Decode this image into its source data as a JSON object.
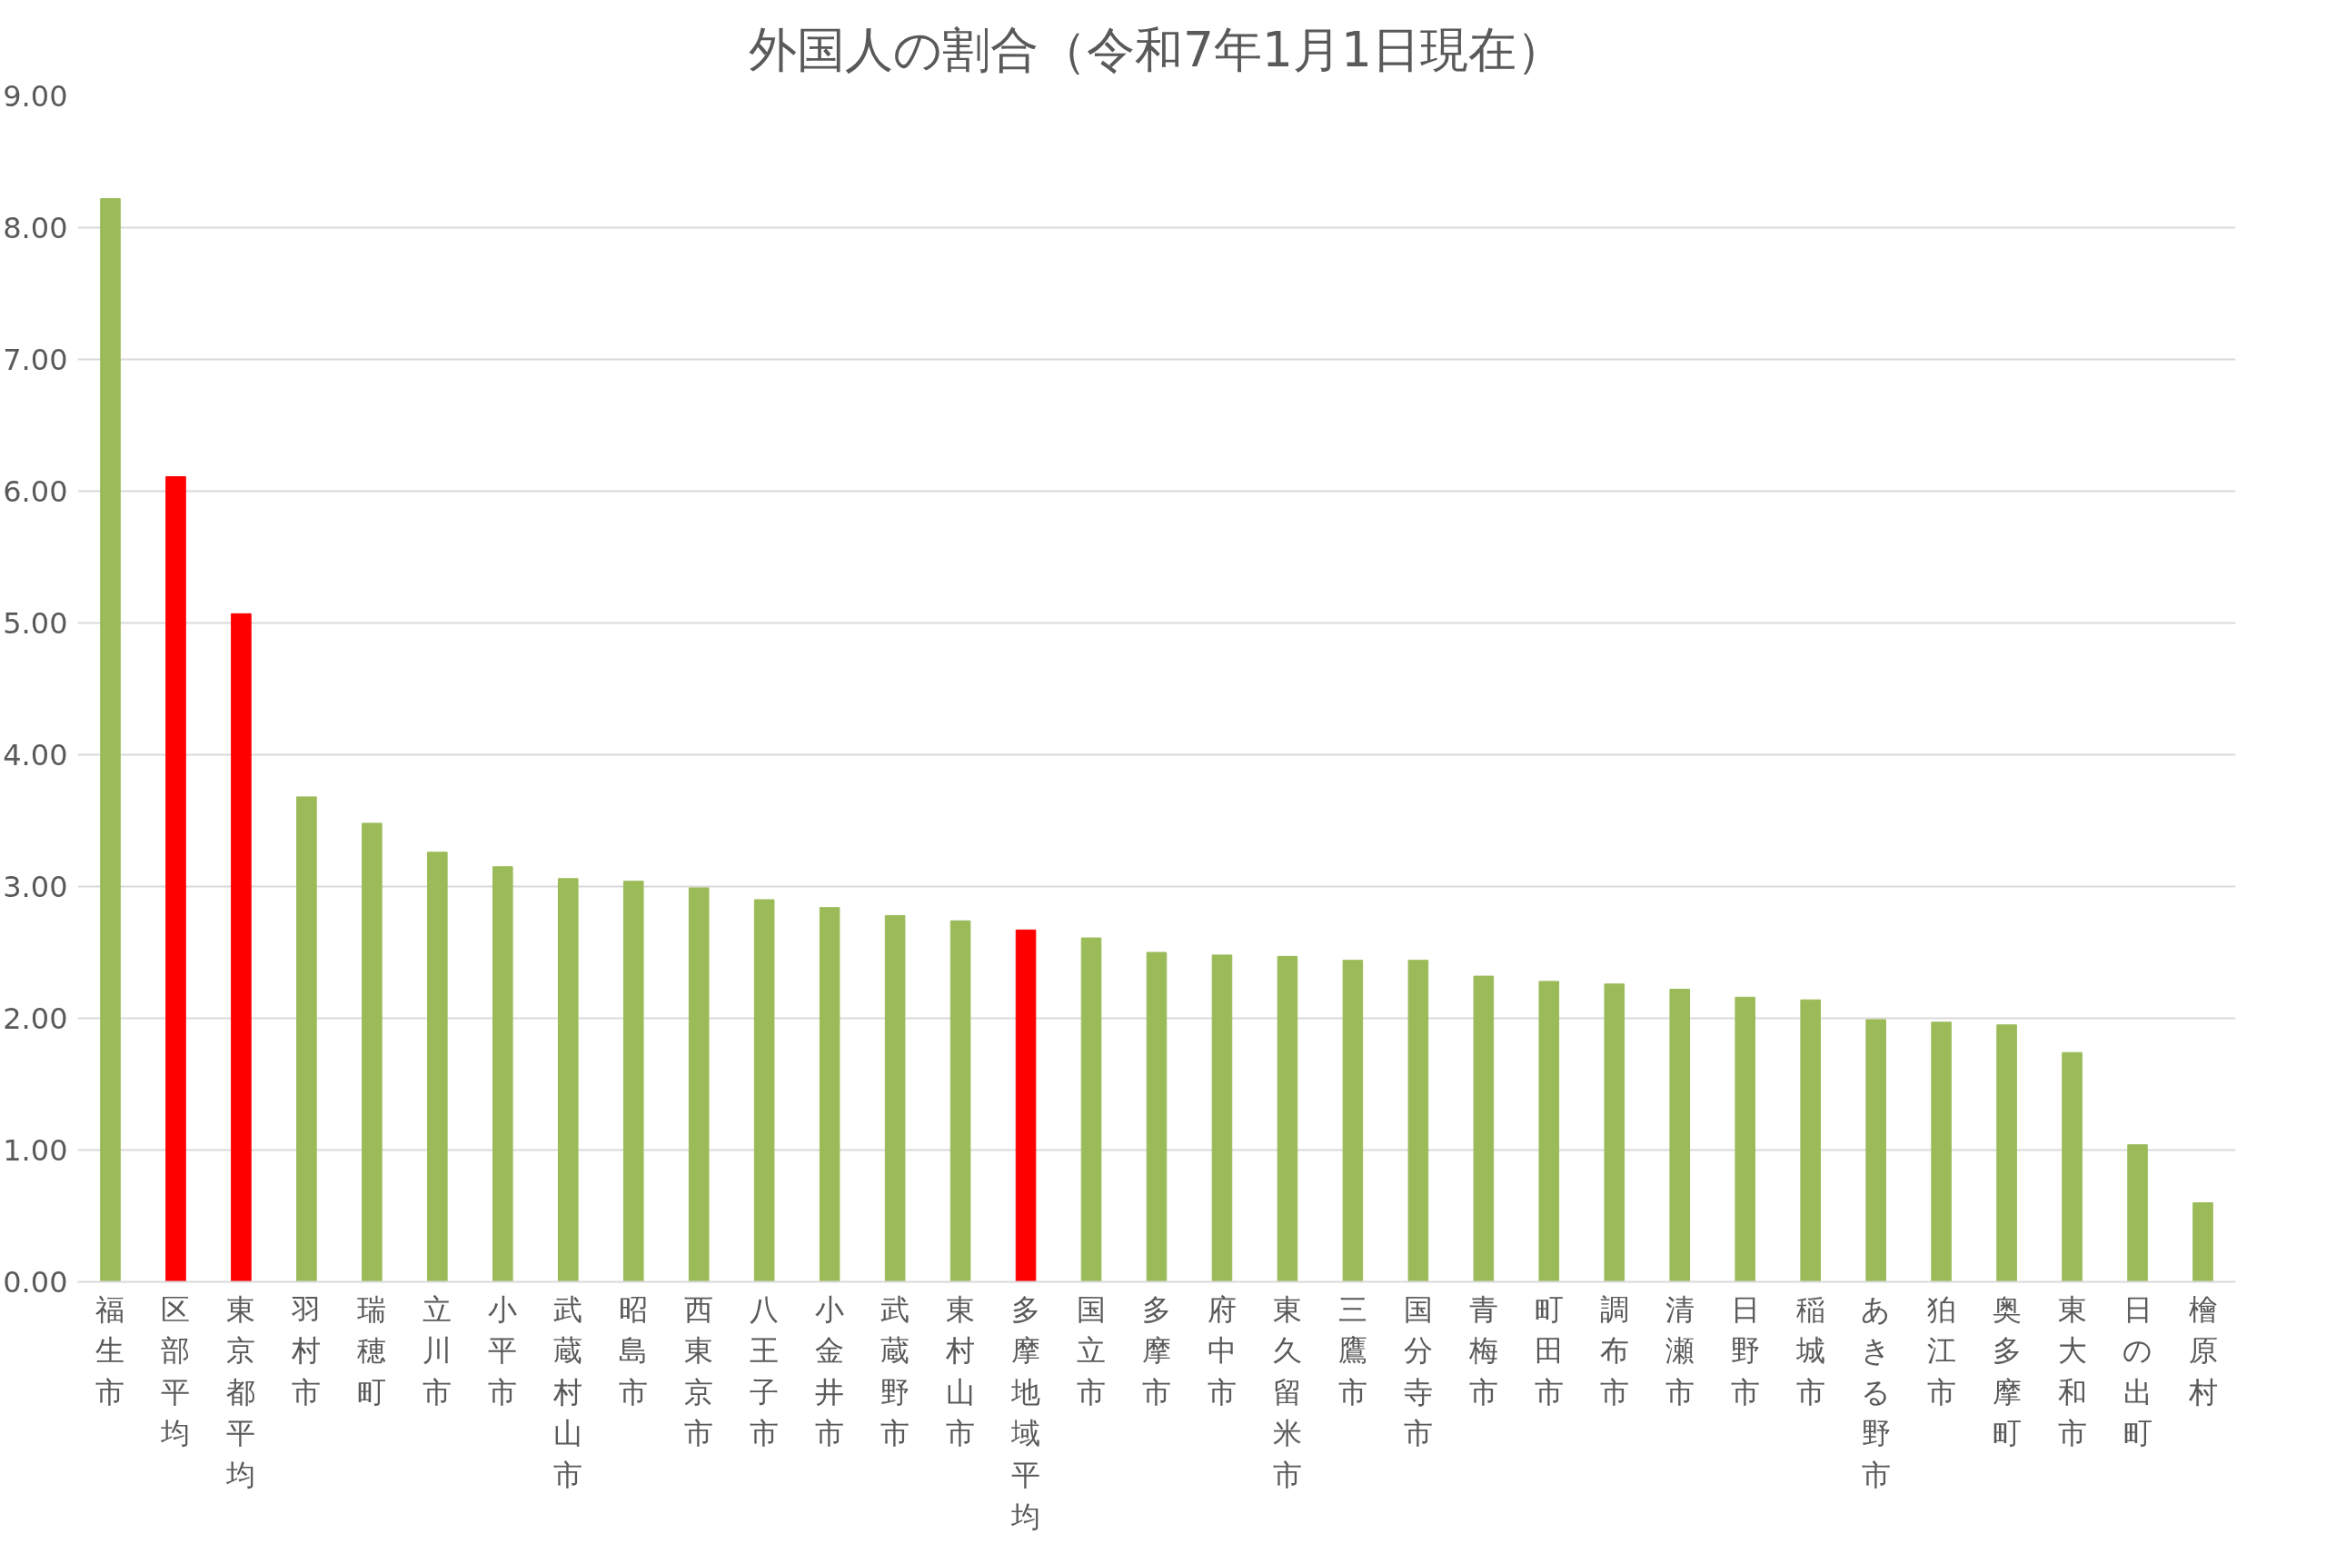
{
  "chart_data": {
    "type": "bar",
    "title": "外国人の割合（令和7年1月1日現在）",
    "categories": [
      "福生市",
      "区部平均",
      "東京都平均",
      "羽村市",
      "瑞穂町",
      "立川市",
      "小平市",
      "武蔵村山市",
      "昭島市",
      "西東京市",
      "八王子市",
      "小金井市",
      "武蔵野市",
      "東村山市",
      "多摩地域平均",
      "国立市",
      "多摩市",
      "府中市",
      "東久留米市",
      "三鷹市",
      "国分寺市",
      "青梅市",
      "町田市",
      "調布市",
      "清瀬市",
      "日野市",
      "稲城市",
      "あきる野市",
      "狛江市",
      "奥多摩町",
      "東大和市",
      "日の出町",
      "檜原村"
    ],
    "values": [
      8.22,
      6.11,
      5.07,
      3.68,
      3.48,
      3.26,
      3.15,
      3.06,
      3.04,
      2.99,
      2.9,
      2.84,
      2.78,
      2.74,
      2.67,
      2.61,
      2.5,
      2.48,
      2.47,
      2.44,
      2.44,
      2.32,
      2.28,
      2.26,
      2.22,
      2.16,
      2.14,
      1.99,
      1.97,
      1.95,
      1.74,
      1.04,
      0.6
    ],
    "colors": [
      "#9bbb59",
      "#ff0000",
      "#ff0000",
      "#9bbb59",
      "#9bbb59",
      "#9bbb59",
      "#9bbb59",
      "#9bbb59",
      "#9bbb59",
      "#9bbb59",
      "#9bbb59",
      "#9bbb59",
      "#9bbb59",
      "#9bbb59",
      "#ff0000",
      "#9bbb59",
      "#9bbb59",
      "#9bbb59",
      "#9bbb59",
      "#9bbb59",
      "#9bbb59",
      "#9bbb59",
      "#9bbb59",
      "#9bbb59",
      "#9bbb59",
      "#9bbb59",
      "#9bbb59",
      "#9bbb59",
      "#9bbb59",
      "#9bbb59",
      "#9bbb59",
      "#9bbb59",
      "#9bbb59"
    ],
    "ylim": [
      0,
      9
    ],
    "yticks": [
      {
        "value": 0,
        "label": "0.00"
      },
      {
        "value": 1,
        "label": "1.00"
      },
      {
        "value": 2,
        "label": "2.00"
      },
      {
        "value": 3,
        "label": "3.00"
      },
      {
        "value": 4,
        "label": "4.00"
      },
      {
        "value": 5,
        "label": "5.00"
      },
      {
        "value": 6,
        "label": "6.00"
      },
      {
        "value": 7,
        "label": "7.00"
      },
      {
        "value": 8,
        "label": "8.00"
      },
      {
        "value": 9,
        "label": "9.00"
      }
    ],
    "grid": "y"
  }
}
